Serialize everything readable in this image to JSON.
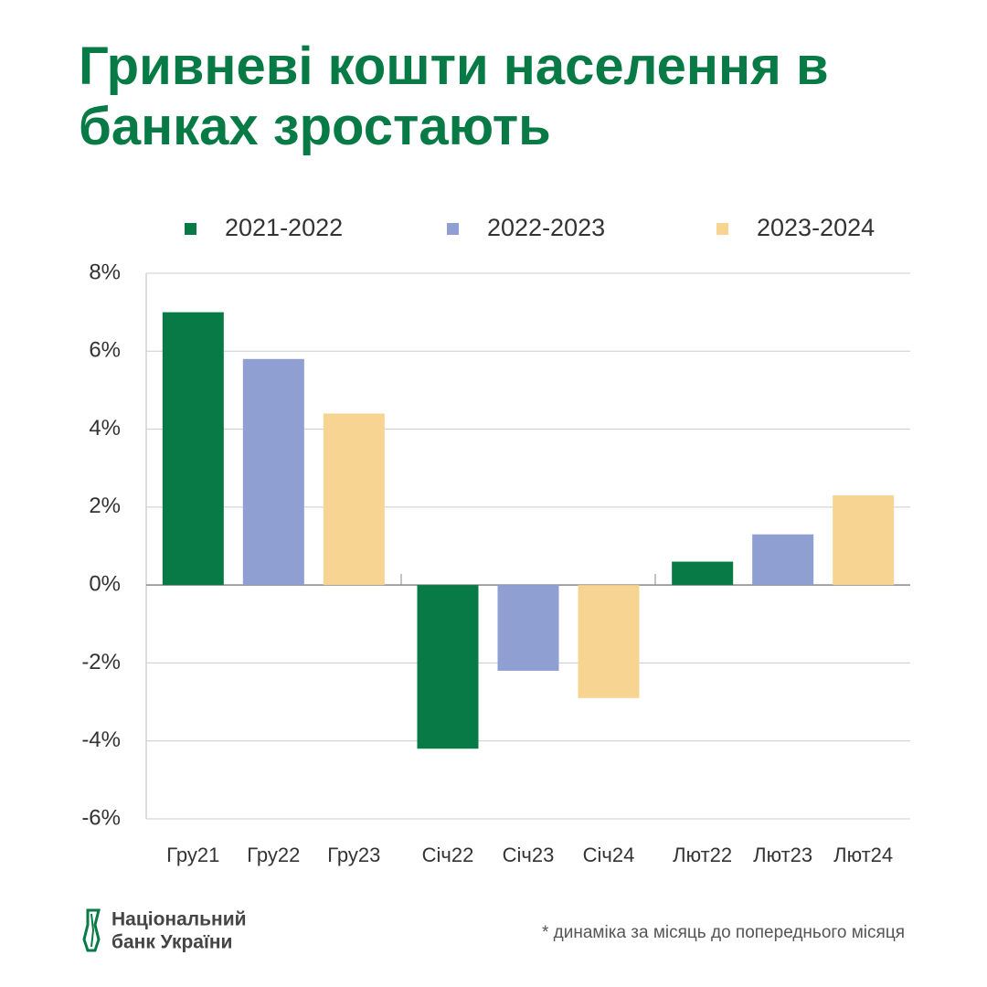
{
  "chart_data": {
    "type": "bar",
    "title": "Гривневі кошти населення в банках зростають",
    "categories": [
      "Гру21",
      "Гру22",
      "Гру23",
      "Січ22",
      "Січ23",
      "Січ24",
      "Лют22",
      "Лют23",
      "Лют24"
    ],
    "series": [
      {
        "name": "2021-2022",
        "color": "#087a45",
        "values": [
          7.0,
          null,
          null,
          -4.2,
          null,
          null,
          0.6,
          null,
          null
        ]
      },
      {
        "name": "2022-2023",
        "color": "#8f9fd2",
        "values": [
          null,
          5.8,
          null,
          null,
          -2.2,
          null,
          null,
          1.3,
          null
        ]
      },
      {
        "name": "2023-2024",
        "color": "#f7d491",
        "values": [
          null,
          null,
          4.4,
          null,
          null,
          -2.9,
          null,
          null,
          2.3
        ]
      }
    ],
    "ylim": [
      -6,
      8
    ],
    "yticks": [
      {
        "value": -6,
        "label": "-6%"
      },
      {
        "value": -4,
        "label": "-4%"
      },
      {
        "value": -2,
        "label": "-2%"
      },
      {
        "value": 0,
        "label": "0%"
      },
      {
        "value": 2,
        "label": "2%"
      },
      {
        "value": 4,
        "label": "4%"
      },
      {
        "value": 6,
        "label": "6%"
      },
      {
        "value": 8,
        "label": "8%"
      }
    ],
    "grid": true,
    "legend": "top",
    "note": "* динаміка за місяць до попереднього місяця"
  },
  "logo": {
    "line1": "Національний",
    "line2": "банк України"
  }
}
